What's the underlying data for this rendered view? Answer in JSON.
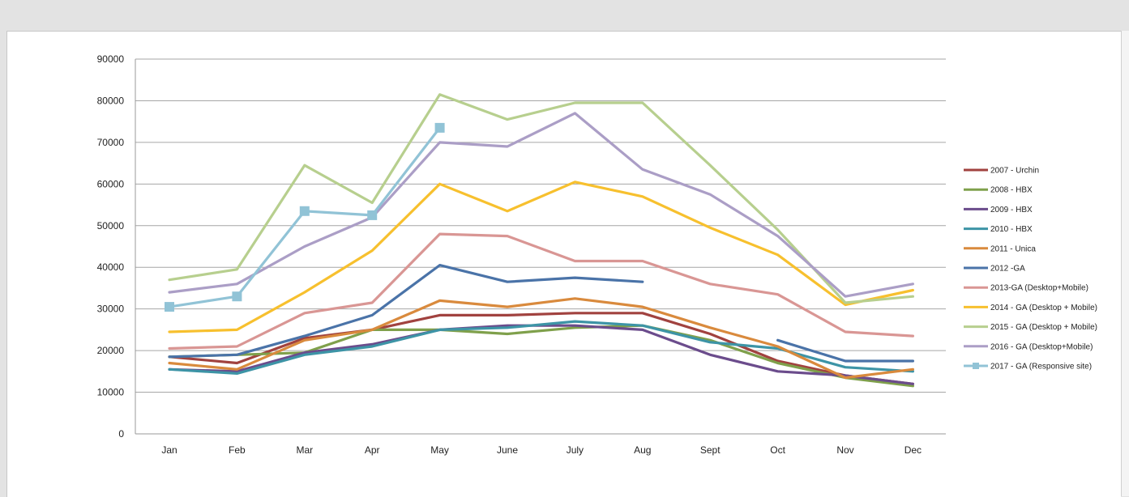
{
  "chart_data": {
    "type": "line",
    "title": "",
    "xlabel": "",
    "ylabel": "",
    "ylim": [
      0,
      90000
    ],
    "yticks": [
      0,
      10000,
      20000,
      30000,
      40000,
      50000,
      60000,
      70000,
      80000,
      90000
    ],
    "grid": "horizontal",
    "legend_position": "right",
    "categories": [
      "Jan",
      "Feb",
      "Mar",
      "Apr",
      "May",
      "June",
      "July",
      "Aug",
      "Sept",
      "Oct",
      "Nov",
      "Dec"
    ],
    "series": [
      {
        "name": "2007 - Urchin",
        "color": "#a1423f",
        "values": [
          18500,
          17000,
          23000,
          25000,
          28500,
          28500,
          29000,
          29000,
          24000,
          17500,
          14000,
          12000
        ]
      },
      {
        "name": "2008 - HBX",
        "color": "#7fa04b",
        "values": [
          18500,
          19000,
          19500,
          25000,
          25000,
          24000,
          25500,
          26000,
          22500,
          17000,
          13500,
          11500
        ]
      },
      {
        "name": "2009 - HBX",
        "color": "#6b4c8c",
        "values": [
          15500,
          15000,
          19500,
          21500,
          25000,
          26000,
          26000,
          25000,
          19000,
          15000,
          14000,
          12000
        ]
      },
      {
        "name": "2010 - HBX",
        "color": "#3d94a6",
        "values": [
          15500,
          14500,
          19000,
          21000,
          25000,
          25500,
          27000,
          26000,
          22000,
          20500,
          16000,
          15000
        ]
      },
      {
        "name": "2011 - Unica",
        "color": "#d98a3d",
        "values": [
          17000,
          15500,
          22500,
          25000,
          32000,
          30500,
          32500,
          30500,
          25500,
          21000,
          13500,
          15500
        ]
      },
      {
        "name": "2012 -GA",
        "color": "#4a73a8",
        "values": [
          18500,
          19000,
          23500,
          28500,
          40500,
          36500,
          37500,
          36500,
          null,
          22500,
          17500,
          17500
        ]
      },
      {
        "name": "2013-GA (Desktop+Mobile)",
        "color": "#d99694",
        "values": [
          20500,
          21000,
          29000,
          31500,
          48000,
          47500,
          41500,
          41500,
          36000,
          33500,
          24500,
          23500
        ]
      },
      {
        "name": "2014 - GA (Desktop + Mobile)",
        "color": "#f7c02e",
        "values": [
          24500,
          25000,
          34000,
          44000,
          60000,
          53500,
          60500,
          57000,
          49500,
          43000,
          31000,
          34500
        ]
      },
      {
        "name": "2015 - GA (Desktop + Mobile)",
        "color": "#b7cf8e",
        "values": [
          37000,
          39500,
          64500,
          55500,
          81500,
          75500,
          79500,
          79500,
          64500,
          49000,
          31500,
          33000
        ]
      },
      {
        "name": "2016 - GA (Desktop+Mobile)",
        "color": "#ab9ec6",
        "values": [
          34000,
          36000,
          45000,
          52000,
          70000,
          69000,
          77000,
          63500,
          57500,
          47500,
          33000,
          36000
        ]
      },
      {
        "name": "2017 - GA (Responsive site)",
        "color": "#91c3d6",
        "marker": "square",
        "values": [
          30500,
          33000,
          53500,
          52500,
          73500,
          null,
          null,
          null,
          null,
          null,
          null,
          null
        ]
      }
    ]
  }
}
